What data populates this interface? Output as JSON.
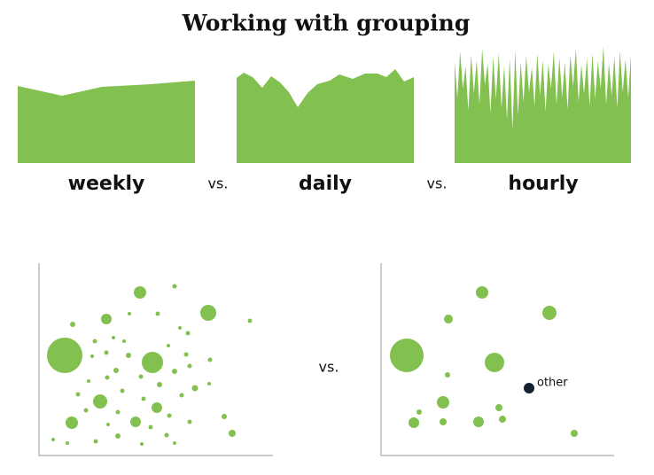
{
  "title": "Working with grouping",
  "comparison": {
    "labels": [
      "weekly",
      "vs.",
      "daily",
      "vs.",
      "hourly"
    ]
  },
  "scatter_comparison": {
    "separator": "vs.",
    "other_label": "other"
  }
}
